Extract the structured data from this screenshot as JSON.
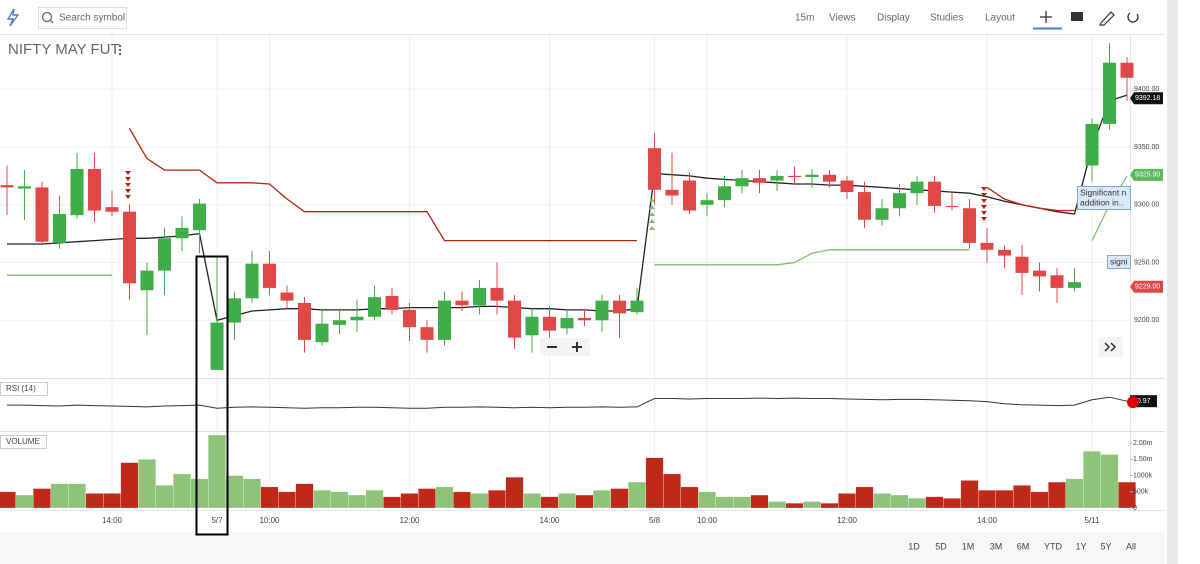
{
  "toolbar": {
    "search_placeholder": "Search symbol",
    "menus": [
      "15m",
      "Views",
      "Display",
      "Studies",
      "Layout"
    ]
  },
  "range_buttons": [
    "1D",
    "5D",
    "1M",
    "3M",
    "6M",
    "YTD",
    "1Y",
    "5Y",
    "All"
  ],
  "chart_data": {
    "type": "candlestick",
    "title": "NIFTY MAY FUT",
    "categories": [
      null,
      null,
      null,
      null,
      null,
      null,
      "14:00",
      null,
      null,
      null,
      null,
      null,
      "5/7",
      null,
      null,
      "10:00",
      null,
      null,
      null,
      null,
      null,
      null,
      null,
      "12:00",
      null,
      null,
      null,
      null,
      null,
      null,
      null,
      "14:00",
      null,
      null,
      null,
      null,
      null,
      "5/8",
      null,
      null,
      "10:00",
      null,
      null,
      null,
      null,
      null,
      null,
      null,
      "12:00",
      null,
      null,
      null,
      null,
      null,
      null,
      null,
      "14:00",
      null,
      null,
      null,
      null,
      null,
      "5/11",
      null,
      null
    ],
    "open": [
      9317,
      9314,
      9315,
      9267,
      9291,
      9331,
      9298,
      9294,
      9226,
      9243,
      9271,
      9278,
      9157,
      9198,
      9219,
      9249,
      9224,
      9215,
      9181,
      9196,
      9200,
      9203,
      9221,
      9209,
      9194,
      9183,
      9217,
      9213,
      9228,
      9217,
      9187,
      9203,
      9193,
      9202,
      9200,
      9217,
      9207,
      9349,
      9313,
      9321,
      9300,
      9304,
      9316,
      9323,
      9321,
      9325,
      9324,
      9326,
      9321,
      9311,
      9287,
      9297,
      9310,
      9320,
      9299,
      9297,
      9267,
      9261,
      9255,
      9243,
      9239,
      9228,
      9334,
      9370,
      9423
    ],
    "high": [
      9334,
      9330,
      9320,
      9308,
      9345,
      9345,
      9312,
      9300,
      9250,
      9280,
      9290,
      9305,
      9255,
      9225,
      9260,
      9260,
      9230,
      9220,
      9210,
      9210,
      9218,
      9230,
      9228,
      9215,
      9200,
      9225,
      9225,
      9235,
      9250,
      9222,
      9210,
      9212,
      9208,
      9210,
      9222,
      9222,
      9228,
      9362,
      9345,
      9328,
      9310,
      9325,
      9330,
      9330,
      9330,
      9333,
      9331,
      9330,
      9325,
      9320,
      9305,
      9318,
      9325,
      9325,
      9310,
      9305,
      9280,
      9265,
      9265,
      9250,
      9245,
      9245,
      9375,
      9440,
      9428
    ],
    "low": [
      9291,
      9287,
      9265,
      9262,
      9288,
      9285,
      9290,
      9218,
      9187,
      9222,
      9260,
      9258,
      9157,
      9183,
      9215,
      9222,
      9210,
      9172,
      9178,
      9188,
      9190,
      9200,
      9205,
      9182,
      9172,
      9178,
      9208,
      9205,
      9205,
      9175,
      9172,
      9185,
      9188,
      9195,
      9190,
      9185,
      9205,
      9300,
      9300,
      9292,
      9290,
      9298,
      9310,
      9310,
      9312,
      9318,
      9315,
      9315,
      9305,
      9280,
      9282,
      9290,
      9300,
      9293,
      9295,
      9262,
      9250,
      9245,
      9222,
      9225,
      9215,
      9225,
      9320,
      9365,
      9390
    ],
    "close": [
      9315,
      9316,
      9268,
      9292,
      9331,
      9295,
      9294,
      9232,
      9243,
      9271,
      9280,
      9301,
      9198,
      9219,
      9249,
      9228,
      9217,
      9183,
      9197,
      9200,
      9203,
      9220,
      9209,
      9194,
      9183,
      9217,
      9213,
      9228,
      9217,
      9185,
      9203,
      9191,
      9202,
      9200,
      9217,
      9206,
      9217,
      9313,
      9308,
      9295,
      9304,
      9316,
      9323,
      9319,
      9325,
      9324,
      9326,
      9320,
      9311,
      9287,
      9297,
      9310,
      9320,
      9299,
      9298,
      9267,
      9261,
      9256,
      9241,
      9238,
      9228,
      9233,
      9370,
      9423,
      9410
    ],
    "up_color": "#3fae49",
    "down_color": "#e04848",
    "ylim": [
      9150,
      9447
    ],
    "yticks": [
      {
        "value": 9200,
        "label": "9200.00"
      },
      {
        "value": 9250,
        "label": "9250.00"
      },
      {
        "value": 9300,
        "label": "9300.00"
      },
      {
        "value": 9350,
        "label": "9350.00"
      },
      {
        "value": 9400,
        "label": "9400.00"
      }
    ],
    "grid": true,
    "lines": [
      {
        "color": "#222222",
        "values": [
          9266,
          9266,
          9266,
          9267,
          9268,
          9269,
          9270,
          9271,
          9271,
          9272,
          9273,
          9275,
          9200,
          9204,
          9208,
          9209,
          9210,
          9210,
          9209,
          9209,
          9209,
          9210,
          9210,
          9211,
          9211,
          9211,
          9211,
          9212,
          9212,
          9211,
          9210,
          9210,
          9209,
          9209,
          9208,
          9208,
          9210,
          9327,
          9326,
          9325,
          9323,
          9322,
          9321,
          9320,
          9319,
          9318,
          9318,
          9317,
          9317,
          9316,
          9315,
          9314,
          9313,
          9312,
          9311,
          9310,
          9307,
          9303,
          9300,
          9297,
          9294,
          9292,
          9350,
          9390,
          9395
        ]
      },
      {
        "color": "#b5260f",
        "values": [
          null,
          null,
          null,
          null,
          null,
          null,
          null,
          9366,
          9340,
          9330,
          9330,
          9330,
          9319,
          9319,
          9319,
          9318,
          9305,
          9294,
          9294,
          9294,
          9294,
          9294,
          9294,
          9294,
          9294,
          9269,
          9269,
          9269,
          9269,
          9269,
          9269,
          9269,
          9269,
          9269,
          9269,
          9269,
          9269,
          null,
          null,
          null,
          null,
          null,
          null,
          null,
          null,
          null,
          null,
          null,
          null,
          null,
          null,
          null,
          null,
          null,
          null,
          null,
          9315,
          9305,
          9300,
          9297,
          9295,
          9295,
          null,
          null,
          null
        ]
      },
      {
        "color": "#7dbf6a",
        "values": [
          9239,
          9239,
          9239,
          9239,
          9239,
          9239,
          9239,
          null,
          null,
          null,
          null,
          null,
          null,
          null,
          null,
          null,
          null,
          null,
          null,
          null,
          null,
          null,
          null,
          null,
          null,
          null,
          null,
          null,
          null,
          null,
          null,
          null,
          null,
          null,
          null,
          null,
          null,
          9248,
          9248,
          9248,
          9248,
          9248,
          9248,
          9248,
          9248,
          9250,
          9258,
          9261,
          9261,
          9261,
          9261,
          9261,
          9261,
          9261,
          9261,
          9261,
          null,
          null,
          null,
          null,
          null,
          null,
          9269,
          9300,
          9325
        ]
      }
    ],
    "price_tags": [
      {
        "value": 9392.18,
        "color": "#111111"
      },
      {
        "value": 9325.9,
        "label": "9325.90",
        "color": "#5cb85c"
      },
      {
        "value": 9229,
        "label": "9229.00",
        "color": "#e04848"
      }
    ],
    "annotations": [
      "Significant n",
      "addition in..",
      "signi"
    ],
    "rsi": {
      "label": "RSI (14)",
      "color": "#333333",
      "ylim": [
        0,
        100
      ],
      "last": 60.97,
      "values": [
        52,
        52,
        51,
        50,
        52,
        51,
        50,
        49,
        48,
        50,
        51,
        52,
        45,
        47,
        48,
        47,
        46,
        45,
        46,
        46,
        47,
        47,
        46,
        45,
        45,
        47,
        47,
        48,
        47,
        46,
        47,
        46,
        47,
        47,
        48,
        47,
        48,
        67,
        67,
        66,
        67,
        67,
        67,
        68,
        67,
        68,
        67,
        67,
        66,
        65,
        64,
        65,
        65,
        64,
        63,
        62,
        60,
        55,
        53,
        52,
        51,
        52,
        64,
        70,
        61
      ]
    },
    "volume": {
      "label": "VOLUME",
      "up_color": "#8cc47a",
      "down_color": "#c0281a",
      "ylim": [
        0,
        2250000
      ],
      "yticks": [
        0,
        {
          "value": 500000,
          "label": "500k"
        },
        {
          "value": 1000000,
          "label": "1000k"
        },
        {
          "value": 1500000,
          "label": "1.50m"
        },
        {
          "value": 2000000,
          "label": "2.00m"
        }
      ],
      "values": [
        500000,
        400000,
        600000,
        750000,
        750000,
        450000,
        450000,
        1400000,
        1500000,
        700000,
        1050000,
        900000,
        2400000,
        1000000,
        900000,
        650000,
        500000,
        750000,
        550000,
        500000,
        400000,
        550000,
        350000,
        450000,
        600000,
        650000,
        500000,
        450000,
        550000,
        950000,
        450000,
        350000,
        450000,
        400000,
        550000,
        600000,
        800000,
        1550000,
        1050000,
        650000,
        500000,
        350000,
        350000,
        400000,
        200000,
        150000,
        200000,
        150000,
        450000,
        650000,
        450000,
        400000,
        300000,
        350000,
        300000,
        850000,
        550000,
        550000,
        700000,
        500000,
        800000,
        900000,
        1750000,
        1650000,
        800000
      ]
    }
  }
}
